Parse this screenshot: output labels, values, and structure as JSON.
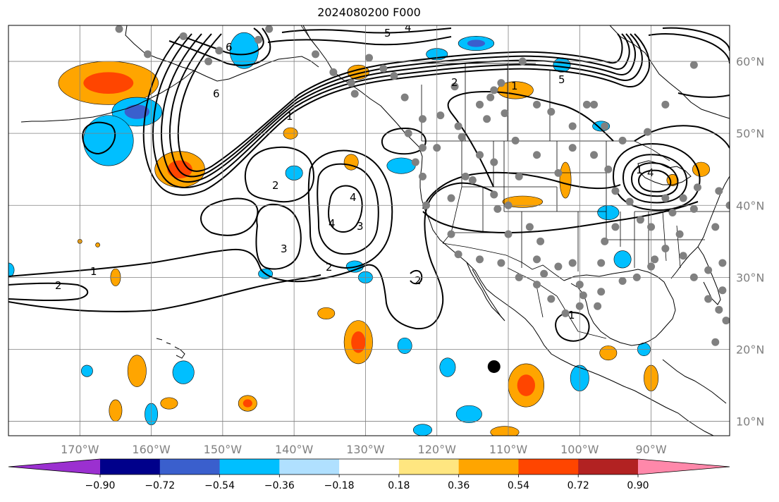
{
  "title": "2024080200 F000",
  "chart_data": {
    "type": "heatmap",
    "title": "2024080200 F000",
    "map_projection": "lat-lon",
    "lon_range": [
      -180,
      -79
    ],
    "lat_range": [
      8,
      65
    ],
    "lon_ticks": [
      {
        "value": -170,
        "label": "170°W"
      },
      {
        "value": -160,
        "label": "160°W"
      },
      {
        "value": -150,
        "label": "150°W"
      },
      {
        "value": -140,
        "label": "140°W"
      },
      {
        "value": -130,
        "label": "130°W"
      },
      {
        "value": -120,
        "label": "120°W"
      },
      {
        "value": -110,
        "label": "110°W"
      },
      {
        "value": -100,
        "label": "100°W"
      },
      {
        "value": -90,
        "label": "90°W"
      }
    ],
    "lat_ticks": [
      {
        "value": 60,
        "label": "60°N"
      },
      {
        "value": 50,
        "label": "50°N"
      },
      {
        "value": 40,
        "label": "40°N"
      },
      {
        "value": 30,
        "label": "30°N"
      },
      {
        "value": 20,
        "label": "20°N"
      },
      {
        "value": 10,
        "label": "10°N"
      }
    ],
    "grid": true,
    "colorbar": {
      "orientation": "horizontal",
      "extend": "both",
      "boundaries": [
        -0.9,
        -0.72,
        -0.54,
        -0.36,
        -0.18,
        0.18,
        0.36,
        0.54,
        0.72,
        0.9
      ],
      "tick_labels": [
        "−0.90",
        "−0.72",
        "−0.54",
        "−0.36",
        "−0.18",
        "0.18",
        "0.36",
        "0.54",
        "0.72",
        "0.90"
      ],
      "colors": [
        "#9b30d0",
        "#00008b",
        "#3a5fcd",
        "#00bfff",
        "#b0e0ff",
        "#ffffff",
        "#ffe680",
        "#ffa500",
        "#ff4500",
        "#b22222",
        "#ff88aa"
      ]
    },
    "contour_labels": [
      "1",
      "2",
      "3",
      "4",
      "5",
      "6"
    ],
    "marker": {
      "lon": -112,
      "lat": 17.6,
      "label": ""
    },
    "anomaly_patches": [
      {
        "lon": -166,
        "lat": 57,
        "rx": 7,
        "ry": 3,
        "value": 0.55
      },
      {
        "lon": -162,
        "lat": 53,
        "rx": 3.5,
        "ry": 2,
        "value": -0.55
      },
      {
        "lon": -166,
        "lat": 49,
        "rx": 3.5,
        "ry": 3.5,
        "value": -0.4
      },
      {
        "lon": -156,
        "lat": 45,
        "rx": 3.5,
        "ry": 2.5,
        "value": 0.6
      },
      {
        "lon": -147,
        "lat": 61.5,
        "rx": 2,
        "ry": 2.5,
        "value": -0.4
      },
      {
        "lon": -131,
        "lat": 58.5,
        "rx": 1.5,
        "ry": 1,
        "value": 0.4
      },
      {
        "lon": -140,
        "lat": 44.5,
        "rx": 1.2,
        "ry": 1,
        "value": -0.4
      },
      {
        "lon": -140.5,
        "lat": 50,
        "rx": 1,
        "ry": 0.8,
        "value": 0.4
      },
      {
        "lon": -132,
        "lat": 46,
        "rx": 1,
        "ry": 1.1,
        "value": 0.4
      },
      {
        "lon": -125,
        "lat": 45.5,
        "rx": 2,
        "ry": 1.1,
        "value": -0.4
      },
      {
        "lon": -120,
        "lat": 61,
        "rx": 1.5,
        "ry": 0.8,
        "value": -0.4
      },
      {
        "lon": -114.5,
        "lat": 62.5,
        "rx": 2.5,
        "ry": 1,
        "value": -0.6
      },
      {
        "lon": -109,
        "lat": 56,
        "rx": 2.5,
        "ry": 1.2,
        "value": 0.45
      },
      {
        "lon": -102.5,
        "lat": 59.5,
        "rx": 1.2,
        "ry": 1,
        "value": -0.4
      },
      {
        "lon": -97,
        "lat": 51,
        "rx": 1.2,
        "ry": 0.7,
        "value": -0.4
      },
      {
        "lon": -108,
        "lat": 40.5,
        "rx": 2.8,
        "ry": 0.8,
        "value": 0.4
      },
      {
        "lon": -102,
        "lat": 43.5,
        "rx": 0.8,
        "ry": 2.5,
        "value": 0.45
      },
      {
        "lon": -96,
        "lat": 39,
        "rx": 1.5,
        "ry": 1,
        "value": -0.4
      },
      {
        "lon": -94,
        "lat": 32.5,
        "rx": 1.2,
        "ry": 1.2,
        "value": -0.4
      },
      {
        "lon": -87,
        "lat": 43.5,
        "rx": 0.8,
        "ry": 0.8,
        "value": 0.4
      },
      {
        "lon": -83,
        "lat": 45,
        "rx": 1.2,
        "ry": 1,
        "value": 0.4
      },
      {
        "lon": -131.5,
        "lat": 31.5,
        "rx": 1.2,
        "ry": 0.8,
        "value": -0.4
      },
      {
        "lon": -130,
        "lat": 30,
        "rx": 1,
        "ry": 0.8,
        "value": -0.4
      },
      {
        "lon": -144,
        "lat": 30.5,
        "rx": 1,
        "ry": 0.7,
        "value": -0.4
      },
      {
        "lon": -165,
        "lat": 30,
        "rx": 0.7,
        "ry": 1.2,
        "value": 0.4
      },
      {
        "lon": -135.5,
        "lat": 25,
        "rx": 1.2,
        "ry": 0.8,
        "value": 0.4
      },
      {
        "lon": -131,
        "lat": 21,
        "rx": 2,
        "ry": 3,
        "value": 0.6
      },
      {
        "lon": -124.5,
        "lat": 20.5,
        "rx": 1,
        "ry": 1.1,
        "value": -0.4
      },
      {
        "lon": -118.5,
        "lat": 17.5,
        "rx": 1.1,
        "ry": 1.3,
        "value": -0.4
      },
      {
        "lon": -107.5,
        "lat": 15,
        "rx": 2.5,
        "ry": 3,
        "value": 0.6
      },
      {
        "lon": -100,
        "lat": 16,
        "rx": 1.3,
        "ry": 1.8,
        "value": -0.4
      },
      {
        "lon": -96,
        "lat": 19.5,
        "rx": 1.2,
        "ry": 1,
        "value": 0.4
      },
      {
        "lon": -90,
        "lat": 16,
        "rx": 1,
        "ry": 1.8,
        "value": 0.4
      },
      {
        "lon": -91,
        "lat": 20,
        "rx": 0.9,
        "ry": 0.9,
        "value": -0.4
      },
      {
        "lon": -169,
        "lat": 17,
        "rx": 0.8,
        "ry": 0.8,
        "value": -0.4
      },
      {
        "lon": -162,
        "lat": 17,
        "rx": 1.3,
        "ry": 2.2,
        "value": 0.45
      },
      {
        "lon": -155.5,
        "lat": 16.8,
        "rx": 1.5,
        "ry": 1.6,
        "value": -0.4
      },
      {
        "lon": -146.5,
        "lat": 12.5,
        "rx": 1.3,
        "ry": 1.1,
        "value": 0.6
      },
      {
        "lon": -165,
        "lat": 11.5,
        "rx": 0.9,
        "ry": 1.5,
        "value": 0.4
      },
      {
        "lon": -160,
        "lat": 11,
        "rx": 0.9,
        "ry": 1.5,
        "value": -0.4
      },
      {
        "lon": -157.5,
        "lat": 12.5,
        "rx": 1.2,
        "ry": 0.8,
        "value": 0.4
      },
      {
        "lon": -115.5,
        "lat": 11,
        "rx": 1.8,
        "ry": 1.2,
        "value": -0.4
      },
      {
        "lon": -122,
        "lat": 8.8,
        "rx": 1.3,
        "ry": 0.8,
        "value": -0.4
      },
      {
        "lon": -110.5,
        "lat": 8.5,
        "rx": 2,
        "ry": 0.8,
        "value": 0.4
      },
      {
        "lon": -180,
        "lat": 31,
        "rx": 0.8,
        "ry": 1,
        "value": -0.4
      },
      {
        "lon": -170,
        "lat": 35,
        "rx": 0.3,
        "ry": 0.3,
        "value": 0.4
      },
      {
        "lon": -167.5,
        "lat": 34.5,
        "rx": 0.3,
        "ry": 0.3,
        "value": 0.4
      }
    ],
    "stations": [
      [
        -164.5,
        64.5
      ],
      [
        -160.5,
        61
      ],
      [
        -155.5,
        63.5
      ],
      [
        -152,
        60
      ],
      [
        -150.5,
        61.5
      ],
      [
        -145,
        63
      ],
      [
        -143.5,
        64.5
      ],
      [
        -137,
        61
      ],
      [
        -134.5,
        58.5
      ],
      [
        -131.5,
        55.5
      ],
      [
        -129.5,
        60.5
      ],
      [
        -132,
        57
      ],
      [
        -127.5,
        59
      ],
      [
        -126,
        58
      ],
      [
        -124.5,
        55
      ],
      [
        -122,
        52
      ],
      [
        -119.5,
        52.5
      ],
      [
        -117.5,
        56.5
      ],
      [
        -117,
        51
      ],
      [
        -114,
        54
      ],
      [
        -112,
        56
      ],
      [
        -112.5,
        55
      ],
      [
        -113,
        52
      ],
      [
        -110.5,
        52.8
      ],
      [
        -111,
        57
      ],
      [
        -108,
        60
      ],
      [
        -106,
        54
      ],
      [
        -104,
        53
      ],
      [
        -101,
        51
      ],
      [
        -99,
        54
      ],
      [
        -98,
        54
      ],
      [
        -96.5,
        51
      ],
      [
        -94,
        49
      ],
      [
        -90.5,
        50.2
      ],
      [
        -88,
        54
      ],
      [
        -84,
        59.5
      ],
      [
        -101,
        48
      ],
      [
        -98,
        47
      ],
      [
        -96,
        45
      ],
      [
        -103,
        44.5
      ],
      [
        -95,
        42
      ],
      [
        -91.5,
        38
      ],
      [
        -90,
        37
      ],
      [
        -87,
        39
      ],
      [
        -84,
        39.5
      ],
      [
        -81,
        37
      ],
      [
        -79,
        40
      ],
      [
        -78,
        34
      ],
      [
        -80,
        32
      ],
      [
        -82,
        31
      ],
      [
        -84,
        30
      ],
      [
        -85.5,
        33
      ],
      [
        -88,
        34
      ],
      [
        -89.5,
        32.5
      ],
      [
        -90,
        31.5
      ],
      [
        -92,
        30
      ],
      [
        -94,
        29.5
      ],
      [
        -97,
        28
      ],
      [
        -97.5,
        26
      ],
      [
        -100,
        29
      ],
      [
        -101,
        32
      ],
      [
        -103,
        31.5
      ],
      [
        -105,
        30.5
      ],
      [
        -106,
        32.5
      ],
      [
        -105.5,
        35
      ],
      [
        -107,
        37
      ],
      [
        -110,
        36
      ],
      [
        -111.5,
        39.5
      ],
      [
        -112,
        41.5
      ],
      [
        -110,
        40
      ],
      [
        -108.5,
        44
      ],
      [
        -106,
        47
      ],
      [
        -109,
        49
      ],
      [
        -114,
        47
      ],
      [
        -112,
        46
      ],
      [
        -116,
        44
      ],
      [
        -118,
        41
      ],
      [
        -121.5,
        40
      ],
      [
        -122,
        44
      ],
      [
        -123,
        46
      ],
      [
        -122,
        48
      ],
      [
        -124,
        50
      ],
      [
        -120,
        48
      ],
      [
        -116.5,
        49.5
      ],
      [
        -115,
        43.5
      ],
      [
        -118,
        36
      ],
      [
        -117,
        33.2
      ],
      [
        -114,
        32.5
      ],
      [
        -111,
        32
      ],
      [
        -108.5,
        30
      ],
      [
        -106,
        29
      ],
      [
        -104,
        27
      ],
      [
        -102,
        25
      ],
      [
        -100,
        26
      ],
      [
        -99.5,
        27.5
      ],
      [
        -97,
        32
      ],
      [
        -96.5,
        35
      ],
      [
        -95,
        37
      ],
      [
        -93,
        40.5
      ],
      [
        -88,
        41
      ],
      [
        -85.5,
        41
      ],
      [
        -83.5,
        42.5
      ],
      [
        -80.5,
        42
      ],
      [
        -78.5,
        43.5
      ],
      [
        -86,
        36
      ],
      [
        -82,
        27
      ],
      [
        -80.5,
        25.5
      ],
      [
        -79.5,
        24
      ],
      [
        -80,
        28.2
      ],
      [
        -81,
        21
      ]
    ]
  }
}
